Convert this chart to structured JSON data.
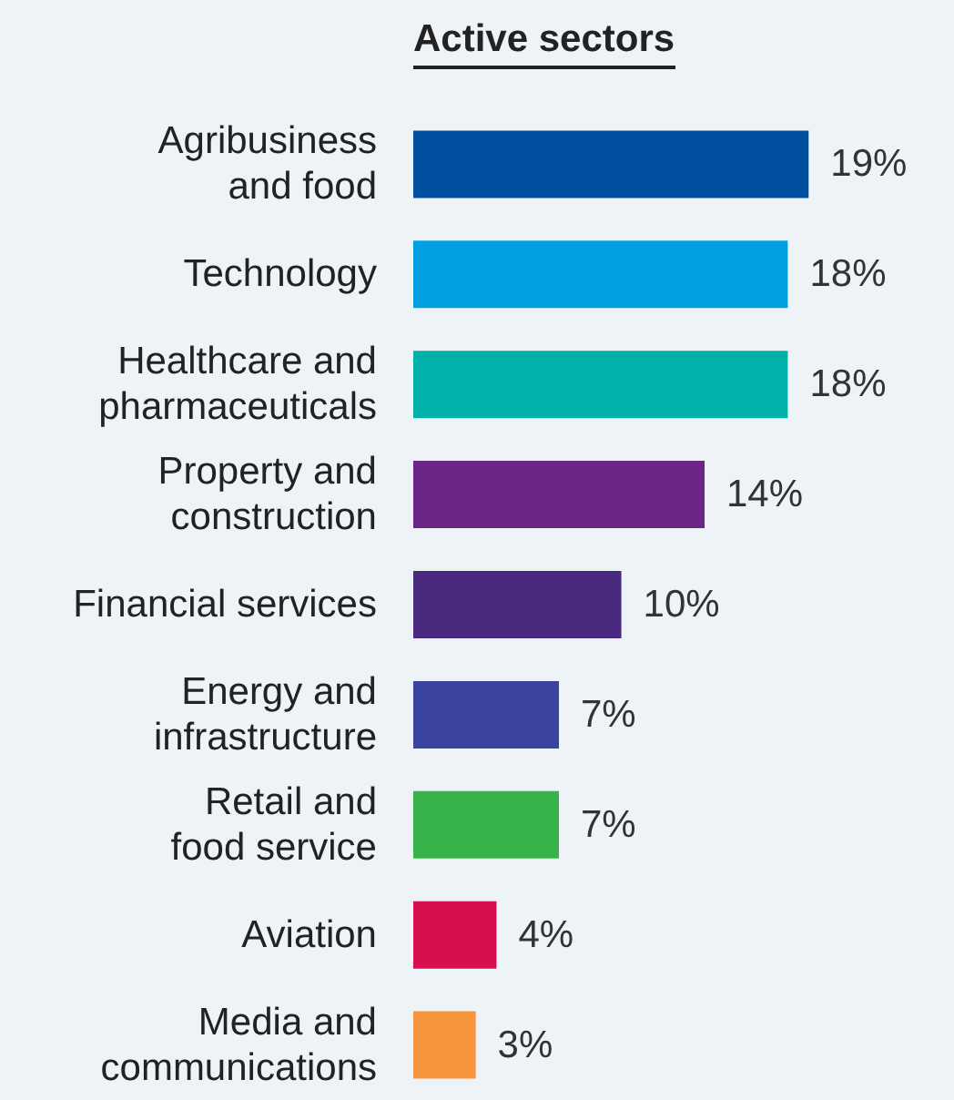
{
  "chart_data": {
    "type": "bar",
    "orientation": "horizontal",
    "title": "Active sectors",
    "categories": [
      "Agribusiness\nand food",
      "Technology",
      "Healthcare and\npharmaceuticals",
      "Property and\nconstruction",
      "Financial services",
      "Energy and\ninfrastructure",
      "Retail and\nfood service",
      "Aviation",
      "Media and\ncommunications"
    ],
    "values": [
      19,
      18,
      18,
      14,
      10,
      7,
      7,
      4,
      3
    ],
    "value_labels": [
      "19%",
      "18%",
      "18%",
      "14%",
      "10%",
      "7%",
      "7%",
      "4%",
      "3%"
    ],
    "colors": [
      "#004f9f",
      "#009fe0",
      "#00b1a9",
      "#6b2585",
      "#4a2a7f",
      "#3a44a0",
      "#37b34a",
      "#d6104f",
      "#f7953c"
    ]
  }
}
